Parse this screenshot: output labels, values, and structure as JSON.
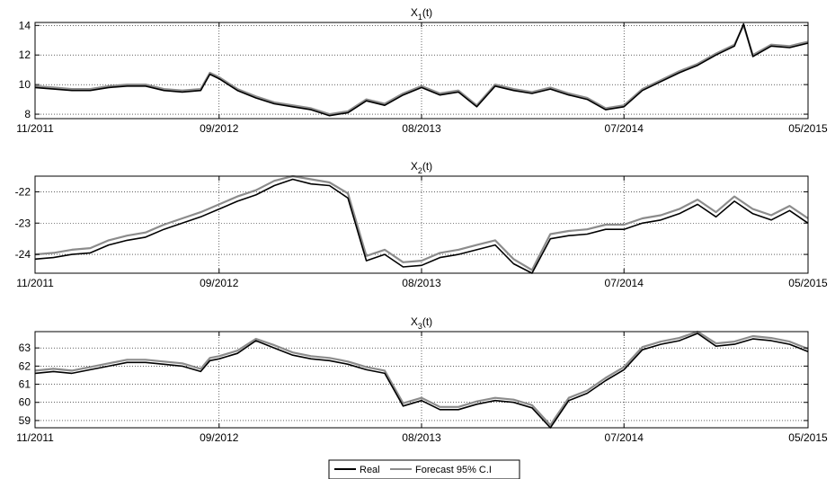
{
  "legend": {
    "real_label": "Real",
    "forecast_label": "Forecast 95% C.I",
    "real_color": "#000000",
    "forecast_color": "#8c8c8c"
  },
  "chart_data": [
    {
      "type": "line",
      "title": "X_1(t)",
      "title_main": "X",
      "title_sub": "1",
      "title_tail": "(t)",
      "xlabel": "",
      "ylabel": "",
      "x_ticks": [
        "11/2011",
        "09/2012",
        "08/2013",
        "07/2014",
        "05/2015"
      ],
      "xlim": [
        0,
        42
      ],
      "x_tick_positions": [
        0,
        10,
        21,
        32,
        42
      ],
      "ylim": [
        7.7,
        14.2
      ],
      "y_ticks": [
        8,
        10,
        12,
        14
      ],
      "grid": true,
      "series": [
        {
          "name": "Real",
          "x": [
            0,
            1,
            2,
            3,
            4,
            5,
            6,
            7,
            8,
            9,
            9.5,
            10,
            11,
            12,
            13,
            14,
            15,
            16,
            17,
            18,
            19,
            20,
            21,
            22,
            23,
            24,
            25,
            26,
            27,
            28,
            29,
            30,
            31,
            32,
            33,
            34,
            35,
            36,
            37,
            38,
            38.5,
            39,
            40,
            41,
            42
          ],
          "values": [
            9.8,
            9.7,
            9.6,
            9.6,
            9.8,
            9.9,
            9.9,
            9.6,
            9.5,
            9.6,
            10.7,
            10.4,
            9.6,
            9.1,
            8.7,
            8.5,
            8.3,
            7.9,
            8.1,
            8.9,
            8.6,
            9.3,
            9.8,
            9.3,
            9.5,
            8.5,
            9.9,
            9.6,
            9.4,
            9.7,
            9.3,
            9.0,
            8.3,
            8.5,
            9.6,
            10.2,
            10.8,
            11.3,
            12.0,
            12.6,
            14.1,
            11.9,
            12.6,
            12.5,
            12.8
          ]
        },
        {
          "name": "Forecast 95% C.I",
          "x": [
            0,
            1,
            2,
            3,
            4,
            5,
            6,
            7,
            8,
            9,
            9.5,
            10,
            11,
            12,
            13,
            14,
            15,
            16,
            17,
            18,
            19,
            20,
            21,
            22,
            23,
            24,
            25,
            26,
            27,
            28,
            29,
            30,
            31,
            32,
            33,
            34,
            35,
            36,
            37,
            38,
            38.5,
            39,
            40,
            41,
            42
          ],
          "values": [
            9.9,
            9.8,
            9.7,
            9.7,
            9.9,
            10.0,
            10.0,
            9.7,
            9.6,
            9.7,
            10.8,
            10.5,
            9.7,
            9.2,
            8.8,
            8.6,
            8.4,
            8.0,
            8.2,
            9.0,
            8.7,
            9.4,
            9.9,
            9.4,
            9.6,
            8.6,
            10.0,
            9.7,
            9.5,
            9.8,
            9.4,
            9.1,
            8.4,
            8.6,
            9.7,
            10.3,
            10.9,
            11.4,
            12.1,
            12.7,
            14.0,
            12.0,
            12.7,
            12.6,
            12.9
          ]
        }
      ]
    },
    {
      "type": "line",
      "title": "X_2(t)",
      "title_main": "X",
      "title_sub": "2",
      "title_tail": "(t)",
      "xlabel": "",
      "ylabel": "",
      "x_ticks": [
        "11/2011",
        "09/2012",
        "08/2013",
        "07/2014",
        "05/2015"
      ],
      "xlim": [
        0,
        42
      ],
      "x_tick_positions": [
        0,
        10,
        21,
        32,
        42
      ],
      "ylim": [
        -24.6,
        -21.5
      ],
      "y_ticks": [
        -22,
        -23,
        -24
      ],
      "grid": true,
      "series": [
        {
          "name": "Real",
          "x": [
            0,
            1,
            2,
            3,
            4,
            5,
            6,
            7,
            8,
            9,
            10,
            11,
            12,
            13,
            14,
            15,
            16,
            17,
            18,
            19,
            20,
            21,
            22,
            23,
            24,
            25,
            26,
            27,
            28,
            29,
            30,
            31,
            32,
            33,
            34,
            35,
            36,
            37,
            38,
            39,
            40,
            41,
            42
          ],
          "values": [
            -24.15,
            -24.1,
            -24.0,
            -23.95,
            -23.7,
            -23.55,
            -23.45,
            -23.2,
            -23.0,
            -22.8,
            -22.55,
            -22.3,
            -22.1,
            -21.8,
            -21.6,
            -21.75,
            -21.8,
            -22.2,
            -24.2,
            -24.0,
            -24.4,
            -24.35,
            -24.1,
            -24.0,
            -23.85,
            -23.7,
            -24.3,
            -24.6,
            -23.5,
            -23.4,
            -23.35,
            -23.2,
            -23.2,
            -23.0,
            -22.9,
            -22.7,
            -22.4,
            -22.8,
            -22.3,
            -22.7,
            -22.9,
            -22.6,
            -23.0
          ]
        },
        {
          "name": "Forecast 95% C.I",
          "x": [
            0,
            1,
            2,
            3,
            4,
            5,
            6,
            7,
            8,
            9,
            10,
            11,
            12,
            13,
            14,
            15,
            16,
            17,
            18,
            19,
            20,
            21,
            22,
            23,
            24,
            25,
            26,
            27,
            28,
            29,
            30,
            31,
            32,
            33,
            34,
            35,
            36,
            37,
            38,
            39,
            40,
            41,
            42
          ],
          "values": [
            -24.0,
            -23.95,
            -23.85,
            -23.8,
            -23.55,
            -23.4,
            -23.3,
            -23.05,
            -22.85,
            -22.65,
            -22.4,
            -22.15,
            -21.95,
            -21.65,
            -21.5,
            -21.6,
            -21.7,
            -22.05,
            -24.05,
            -23.85,
            -24.25,
            -24.2,
            -23.95,
            -23.85,
            -23.7,
            -23.55,
            -24.15,
            -24.5,
            -23.35,
            -23.25,
            -23.2,
            -23.05,
            -23.05,
            -22.85,
            -22.75,
            -22.55,
            -22.25,
            -22.65,
            -22.15,
            -22.55,
            -22.75,
            -22.45,
            -22.85
          ]
        }
      ]
    },
    {
      "type": "line",
      "title": "X_3(t)",
      "title_main": "X",
      "title_sub": "3",
      "title_tail": "(t)",
      "xlabel": "",
      "ylabel": "",
      "x_ticks": [
        "11/2011",
        "09/2012",
        "08/2013",
        "07/2014",
        "05/2015"
      ],
      "xlim": [
        0,
        42
      ],
      "x_tick_positions": [
        0,
        10,
        21,
        32,
        42
      ],
      "ylim": [
        58.6,
        63.9
      ],
      "y_ticks": [
        63,
        62,
        61,
        60,
        59
      ],
      "grid": true,
      "series": [
        {
          "name": "Real",
          "x": [
            0,
            1,
            2,
            3,
            4,
            5,
            6,
            7,
            8,
            9,
            9.5,
            10,
            11,
            12,
            13,
            14,
            15,
            16,
            17,
            18,
            19,
            20,
            21,
            22,
            23,
            24,
            25,
            26,
            27,
            28,
            29,
            30,
            31,
            32,
            33,
            34,
            35,
            36,
            37,
            38,
            39,
            40,
            41,
            42
          ],
          "values": [
            61.6,
            61.7,
            61.6,
            61.8,
            62.0,
            62.2,
            62.2,
            62.1,
            62.0,
            61.7,
            62.3,
            62.4,
            62.7,
            63.4,
            63.0,
            62.6,
            62.4,
            62.3,
            62.1,
            61.8,
            61.6,
            59.8,
            60.1,
            59.6,
            59.6,
            59.9,
            60.1,
            60.0,
            59.7,
            58.6,
            60.1,
            60.5,
            61.2,
            61.8,
            62.9,
            63.2,
            63.4,
            63.8,
            63.1,
            63.2,
            63.5,
            63.4,
            63.2,
            62.8
          ]
        },
        {
          "name": "Forecast 95% C.I",
          "x": [
            0,
            1,
            2,
            3,
            4,
            5,
            6,
            7,
            8,
            9,
            9.5,
            10,
            11,
            12,
            13,
            14,
            15,
            16,
            17,
            18,
            19,
            20,
            21,
            22,
            23,
            24,
            25,
            26,
            27,
            28,
            29,
            30,
            31,
            32,
            33,
            34,
            35,
            36,
            37,
            38,
            39,
            40,
            41,
            42
          ],
          "values": [
            61.75,
            61.85,
            61.75,
            61.95,
            62.15,
            62.35,
            62.35,
            62.25,
            62.15,
            61.85,
            62.45,
            62.55,
            62.85,
            63.5,
            63.15,
            62.75,
            62.55,
            62.45,
            62.25,
            61.95,
            61.75,
            59.95,
            60.25,
            59.75,
            59.75,
            60.05,
            60.25,
            60.15,
            59.85,
            58.75,
            60.25,
            60.65,
            61.35,
            61.95,
            63.05,
            63.35,
            63.55,
            63.9,
            63.25,
            63.35,
            63.65,
            63.55,
            63.35,
            62.95
          ]
        }
      ]
    }
  ]
}
